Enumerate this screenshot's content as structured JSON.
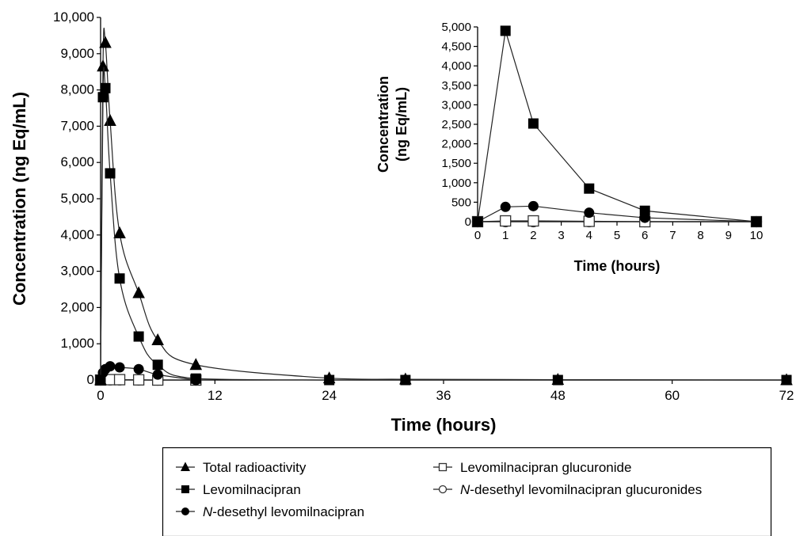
{
  "chart_data": [
    {
      "type": "line",
      "xlabel": "Time (hours)",
      "ylabel": "Concentration (ng Eq/mL)",
      "xlim": [
        0,
        72
      ],
      "ylim": [
        0,
        10000
      ],
      "x_ticks": [
        "0",
        "12",
        "24",
        "36",
        "48",
        "60",
        "72"
      ],
      "y_ticks": [
        "0",
        "1,000",
        "2,000",
        "3,000",
        "4,000",
        "5,000",
        "6,000",
        "7,000",
        "8,000",
        "9,000",
        "10,000"
      ],
      "grid": false,
      "series": [
        {
          "name": "Total radioactivity",
          "marker": "triangle-filled",
          "x": [
            0,
            0.25,
            0.5,
            1,
            2,
            4,
            6,
            10,
            24,
            32,
            48,
            72
          ],
          "y": [
            0,
            8650,
            9300,
            7150,
            4050,
            2400,
            1100,
            420,
            50,
            20,
            10,
            0
          ]
        },
        {
          "name": "Levomilnacipran",
          "marker": "square-filled",
          "x": [
            0,
            0.25,
            0.5,
            1,
            2,
            4,
            6,
            10,
            24,
            32,
            48,
            72
          ],
          "y": [
            0,
            7800,
            8050,
            5700,
            2800,
            1200,
            420,
            40,
            0,
            0,
            0,
            0
          ]
        },
        {
          "name": "N-desethyl levomilnacipran",
          "marker": "circle-filled",
          "x": [
            0,
            0.25,
            0.5,
            1,
            2,
            4,
            6,
            10
          ],
          "y": [
            0,
            200,
            300,
            380,
            350,
            300,
            150,
            0
          ]
        },
        {
          "name": "Levomilnacipran glucuronide",
          "marker": "square-open",
          "x": [
            0,
            1,
            2,
            4,
            6,
            10
          ],
          "y": [
            0,
            10,
            10,
            5,
            0,
            0
          ]
        },
        {
          "name": "N-desethyl levomilnacipran glucuronides",
          "marker": "circle-open",
          "x": [
            0,
            1,
            2,
            4,
            6,
            10
          ],
          "y": [
            0,
            5,
            5,
            0,
            0,
            0
          ]
        }
      ],
      "legend": {
        "placement": "bottom",
        "entries": [
          {
            "pre": "",
            "italic": "",
            "post": "Total radioactivity",
            "marker": "triangle-filled"
          },
          {
            "pre": "",
            "italic": "",
            "post": "Levomilnacipran",
            "marker": "square-filled"
          },
          {
            "pre": "",
            "italic": "N",
            "post": "-desethyl levomilnacipran",
            "marker": "circle-filled"
          },
          {
            "pre": "",
            "italic": "",
            "post": "Levomilnacipran glucuronide",
            "marker": "square-open"
          },
          {
            "pre": "",
            "italic": "N",
            "post": "-desethyl levomilnacipran glucuronides",
            "marker": "circle-open"
          }
        ]
      }
    },
    {
      "type": "line",
      "inset": true,
      "xlabel": "Time (hours)",
      "ylabel": "Concentration (ng Eq/mL)",
      "ylabel_lines": [
        "Concentration",
        "(ng Eq/mL)"
      ],
      "xlim": [
        0,
        10
      ],
      "ylim": [
        0,
        5000
      ],
      "x_ticks": [
        "0",
        "1",
        "2",
        "3",
        "4",
        "5",
        "6",
        "7",
        "8",
        "9",
        "10"
      ],
      "y_ticks": [
        "0",
        "500",
        "1,000",
        "1,500",
        "2,000",
        "2,500",
        "3,000",
        "3,500",
        "4,000",
        "4,500",
        "5,000"
      ],
      "grid": false,
      "series": [
        {
          "name": "Levomilnacipran",
          "marker": "square-filled",
          "x": [
            0,
            1,
            2,
            4,
            6,
            10
          ],
          "y": [
            0,
            4900,
            2520,
            850,
            280,
            0
          ]
        },
        {
          "name": "N-desethyl levomilnacipran",
          "marker": "circle-filled",
          "x": [
            0,
            1,
            2,
            4,
            6,
            10
          ],
          "y": [
            0,
            380,
            400,
            230,
            100,
            0
          ]
        },
        {
          "name": "Levomilnacipran glucuronide",
          "marker": "square-open",
          "x": [
            0,
            1,
            2,
            4,
            6,
            10
          ],
          "y": [
            0,
            20,
            20,
            10,
            0,
            0
          ]
        },
        {
          "name": "N-desethyl levomilnacipran glucuronides",
          "marker": "circle-open",
          "x": [
            0,
            1,
            2,
            4,
            6,
            10
          ],
          "y": [
            0,
            0,
            0,
            0,
            0,
            0
          ]
        }
      ]
    }
  ]
}
